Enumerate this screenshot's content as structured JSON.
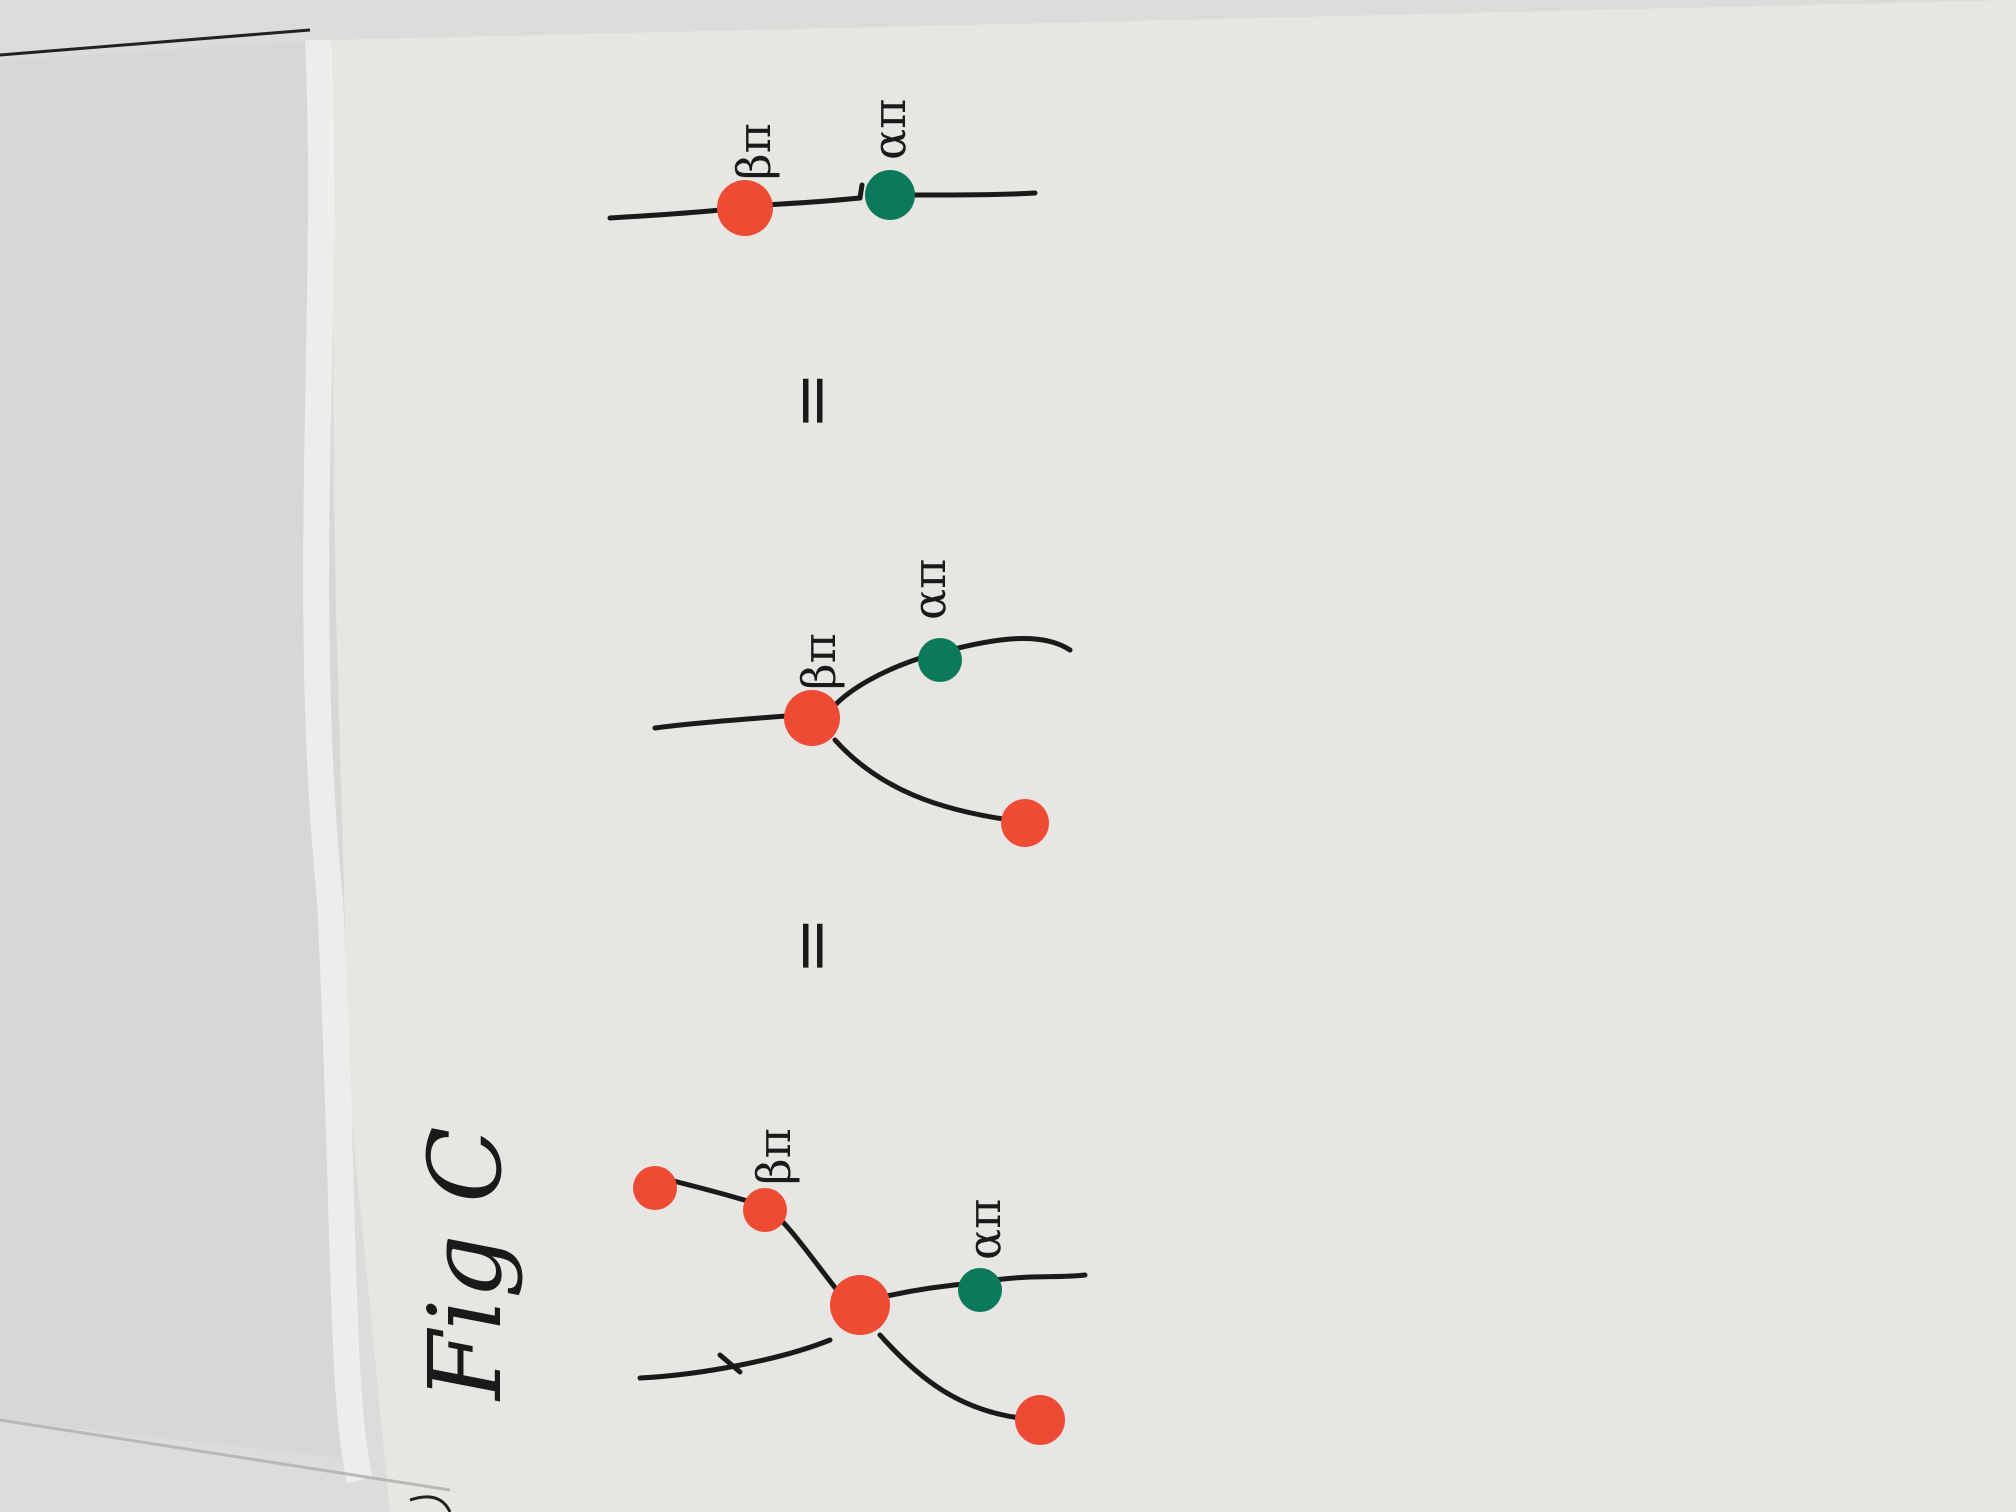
{
  "figure": {
    "title": "Fig C",
    "equals": [
      "=",
      "="
    ],
    "diagrams": [
      {
        "labels": [
          "βπ",
          "απ"
        ]
      },
      {
        "labels": [
          "βπ",
          "απ"
        ]
      },
      {
        "labels": [
          "βπ",
          "απ"
        ]
      }
    ]
  },
  "colors": {
    "paper": "#e7e6e3",
    "red_spider": "#ee4b35",
    "green_spider": "#0b7a5a",
    "ink": "#1a1a1a"
  }
}
